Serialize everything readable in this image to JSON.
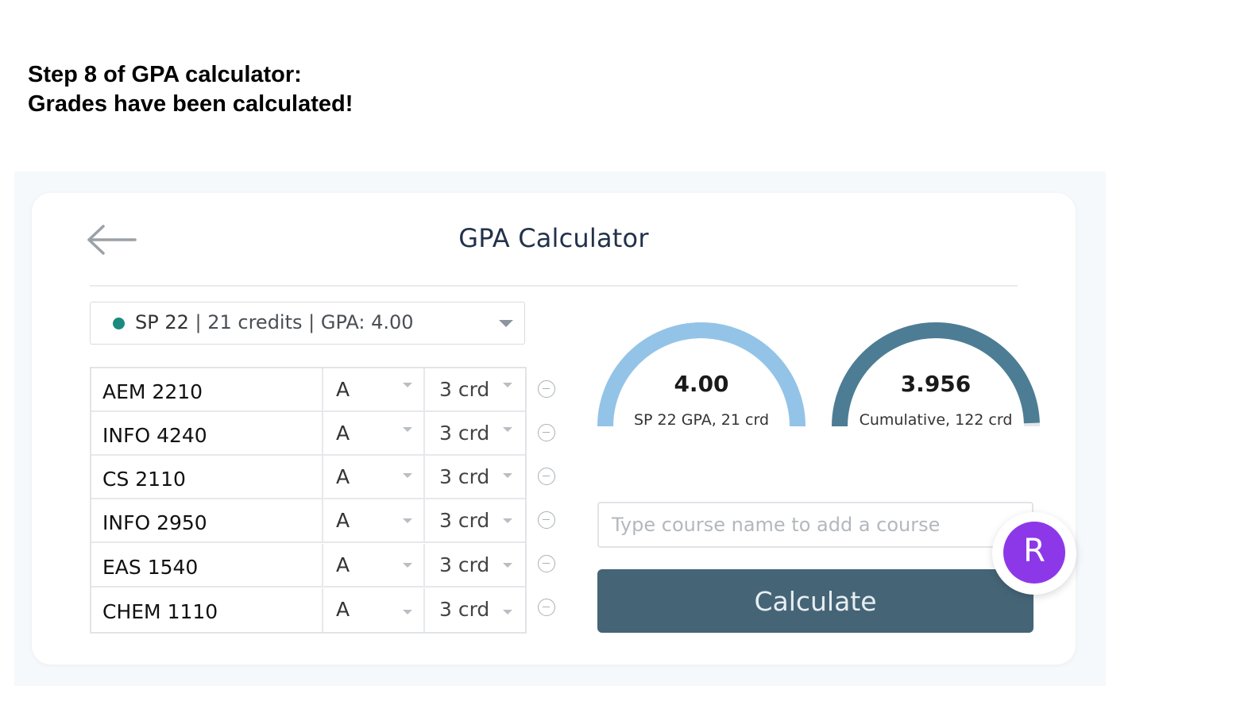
{
  "caption": {
    "line1": "Step 8 of GPA calculator:",
    "line2": "Grades have been calculated!"
  },
  "header": {
    "back_icon": "arrow-left-icon",
    "title": "GPA Calculator"
  },
  "term": {
    "name": "SP 22",
    "details": " | 21 credits | GPA: 4.00",
    "dot_color": "#1c8a7e"
  },
  "courses": [
    {
      "name": "AEM 2210",
      "grade": "A",
      "credits": "3 crd"
    },
    {
      "name": "INFO 4240",
      "grade": "A",
      "credits": "3 crd"
    },
    {
      "name": "CS 2110",
      "grade": "A",
      "credits": "3 crd"
    },
    {
      "name": "INFO 2950",
      "grade": "A",
      "credits": "3 crd"
    },
    {
      "name": "EAS 1540",
      "grade": "A",
      "credits": "3 crd"
    },
    {
      "name": "CHEM 1110",
      "grade": "A",
      "credits": "3 crd"
    }
  ],
  "gauges": {
    "term": {
      "value": "4.00",
      "label": "SP 22 GPA, 21 crd",
      "fraction": 1.0,
      "color": "#93c4e8"
    },
    "cumulative": {
      "value": "3.956",
      "label": "Cumulative, 122 crd",
      "fraction": 0.989,
      "color": "#4d7d94"
    }
  },
  "add_course": {
    "placeholder": "Type course name to add a course"
  },
  "actions": {
    "calculate_label": "Calculate"
  },
  "user": {
    "avatar_initial": "R",
    "avatar_color": "#8d38e8"
  },
  "colors": {
    "primary_button": "#456577",
    "title_text": "#22324a"
  }
}
